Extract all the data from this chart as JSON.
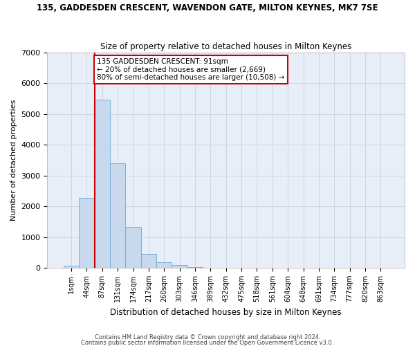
{
  "title": "135, GADDESDEN CRESCENT, WAVENDON GATE, MILTON KEYNES, MK7 7SE",
  "subtitle": "Size of property relative to detached houses in Milton Keynes",
  "xlabel": "Distribution of detached houses by size in Milton Keynes",
  "ylabel": "Number of detached properties",
  "footer1": "Contains HM Land Registry data © Crown copyright and database right 2024.",
  "footer2": "Contains public sector information licensed under the Open Government Licence v3.0.",
  "bar_color": "#c8d9ee",
  "bar_edgecolor": "#6aaad4",
  "grid_color": "#ccd6e8",
  "background_color": "#e8eef8",
  "annotation_box_color": "#ffffff",
  "annotation_border_color": "#cc0000",
  "vline_color": "#cc0000",
  "categories": [
    "1sqm",
    "44sqm",
    "87sqm",
    "131sqm",
    "174sqm",
    "217sqm",
    "260sqm",
    "303sqm",
    "346sqm",
    "389sqm",
    "432sqm",
    "475sqm",
    "518sqm",
    "561sqm",
    "604sqm",
    "648sqm",
    "691sqm",
    "734sqm",
    "777sqm",
    "820sqm",
    "863sqm"
  ],
  "values": [
    75,
    2280,
    5470,
    3400,
    1330,
    450,
    175,
    80,
    30,
    0,
    0,
    0,
    0,
    0,
    0,
    0,
    0,
    0,
    0,
    0,
    0
  ],
  "ylim": [
    0,
    7000
  ],
  "yticks": [
    0,
    1000,
    2000,
    3000,
    4000,
    5000,
    6000,
    7000
  ],
  "annotation_text": "135 GADDESDEN CRESCENT: 91sqm\n← 20% of detached houses are smaller (2,669)\n80% of semi-detached houses are larger (10,508) →",
  "vline_bar_index": 2
}
